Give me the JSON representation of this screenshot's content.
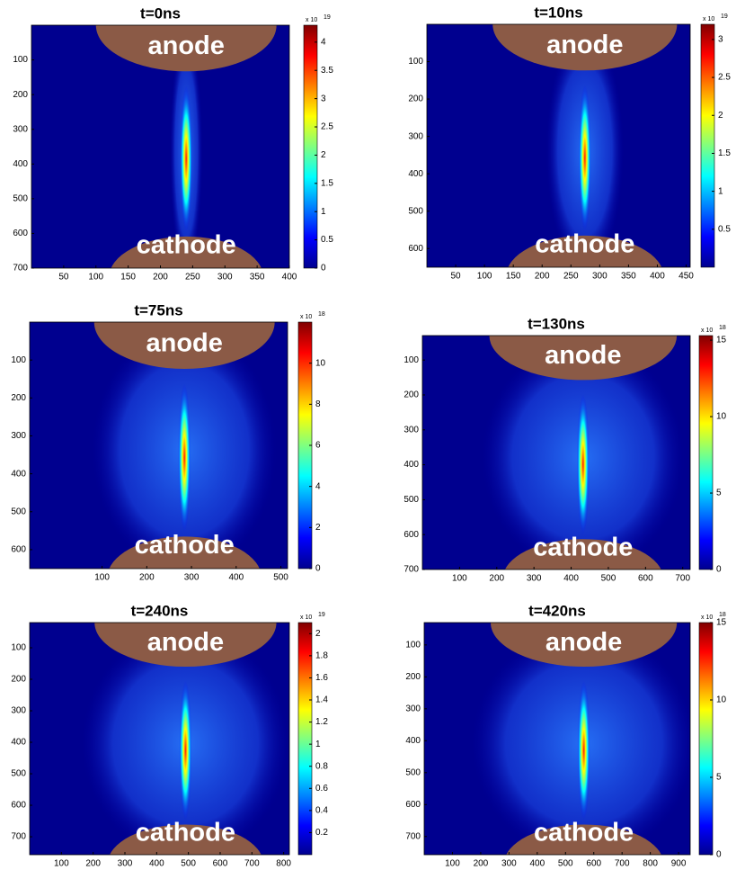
{
  "chart_data": [
    {
      "type": "heatmap",
      "title": "t=0ns",
      "annotations": [
        "anode",
        "cathode"
      ],
      "xlim": [
        0,
        400
      ],
      "xticks": [
        50,
        100,
        150,
        200,
        250,
        300,
        350,
        400
      ],
      "ylim": [
        0,
        700
      ],
      "yticks": [
        100,
        200,
        300,
        400,
        500,
        600,
        700
      ],
      "clim": [
        0,
        4.3
      ],
      "cticks": [
        0,
        0.5,
        1,
        1.5,
        2,
        2.5,
        3,
        3.5,
        4
      ],
      "colorbar_label": "x 10",
      "colorbar_exponent": "19"
    },
    {
      "type": "heatmap",
      "title": "t=10ns",
      "annotations": [
        "anode",
        "cathode"
      ],
      "xlim": [
        0,
        457
      ],
      "xticks": [
        50,
        100,
        150,
        200,
        250,
        300,
        350,
        400,
        450
      ],
      "ylim": [
        0,
        650
      ],
      "yticks": [
        100,
        200,
        300,
        400,
        500,
        600
      ],
      "clim": [
        0,
        3.2
      ],
      "cticks": [
        0.5,
        1,
        1.5,
        2,
        2.5,
        3
      ],
      "colorbar_label": "x 10",
      "colorbar_exponent": "19"
    },
    {
      "type": "heatmap",
      "title": "t=75ns",
      "annotations": [
        "anode",
        "cathode"
      ],
      "xlim": [
        -62,
        515
      ],
      "xticks": [
        100,
        200,
        300,
        400,
        500
      ],
      "ylim": [
        0,
        650
      ],
      "yticks": [
        100,
        200,
        300,
        400,
        500,
        600
      ],
      "clim": [
        0,
        12
      ],
      "cticks": [
        0,
        2,
        4,
        6,
        8,
        10
      ],
      "colorbar_label": "x 10",
      "colorbar_exponent": "18"
    },
    {
      "type": "heatmap",
      "title": "t=130ns",
      "annotations": [
        "anode",
        "cathode"
      ],
      "xlim": [
        0,
        720
      ],
      "xticks": [
        100,
        200,
        300,
        400,
        500,
        600,
        700
      ],
      "ylim": [
        30,
        700
      ],
      "yticks": [
        100,
        200,
        300,
        400,
        500,
        600,
        700
      ],
      "clim": [
        0,
        15.3
      ],
      "cticks": [
        0,
        5,
        10,
        15
      ],
      "colorbar_label": "x 10",
      "colorbar_exponent": "18"
    },
    {
      "type": "heatmap",
      "title": "t=240ns",
      "annotations": [
        "anode",
        "cathode"
      ],
      "xlim": [
        0,
        818
      ],
      "xticks": [
        100,
        200,
        300,
        400,
        500,
        600,
        700,
        800
      ],
      "ylim": [
        20,
        757
      ],
      "yticks": [
        100,
        200,
        300,
        400,
        500,
        600,
        700
      ],
      "clim": [
        0,
        2.1
      ],
      "cticks": [
        0.2,
        0.4,
        0.6,
        0.8,
        1,
        1.2,
        1.4,
        1.6,
        1.8,
        2
      ],
      "colorbar_label": "x 10",
      "colorbar_exponent": "19"
    },
    {
      "type": "heatmap",
      "title": "t=420ns",
      "annotations": [
        "anode",
        "cathode"
      ],
      "xlim": [
        0,
        941
      ],
      "xticks": [
        100,
        200,
        300,
        400,
        500,
        600,
        700,
        800,
        900
      ],
      "ylim": [
        30,
        757
      ],
      "yticks": [
        100,
        200,
        300,
        400,
        500,
        600,
        700
      ],
      "clim": [
        0,
        15
      ],
      "cticks": [
        0,
        5,
        10,
        15
      ],
      "colorbar_label": "x 10",
      "colorbar_exponent": "18"
    }
  ]
}
